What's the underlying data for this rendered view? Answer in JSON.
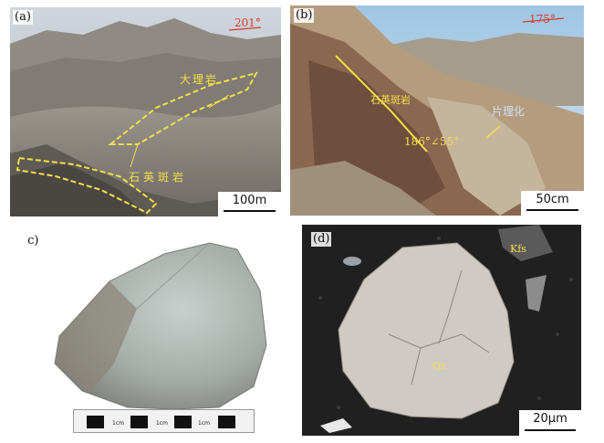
{
  "panels": {
    "a": {
      "label": "(a)",
      "azimuth": "201°",
      "marble_label": "大理岩",
      "quartz_label": "石英斑岩",
      "scale": "100m"
    },
    "b": {
      "label": "(b)",
      "azimuth": "175°",
      "quartz_label": "石英斑岩",
      "schist_label": "片理化",
      "attitude": "186°∠55°",
      "scale": "50cm"
    },
    "c": {
      "label": "(c)",
      "ruler_unit": "1cm"
    },
    "d": {
      "label": "(d)",
      "kfs_label": "Kfs",
      "qz_label": "Qz",
      "scale": "20μm"
    }
  },
  "colors": {
    "annotation": "#f3e04a",
    "azimuth": "#d63a2d"
  }
}
